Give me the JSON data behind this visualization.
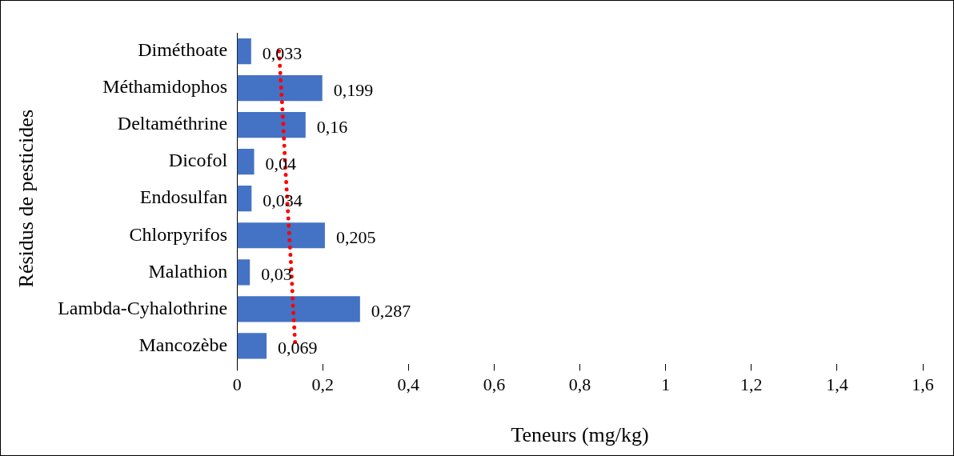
{
  "chart_data": {
    "type": "bar",
    "orientation": "horizontal",
    "xlabel": "Teneurs (mg/kg)",
    "ylabel": "Résidus de pesticides",
    "categories": [
      "Diméthoate",
      "Méthamidophos",
      "Deltaméthrine",
      "Dicofol",
      "Endosulfan",
      "Chlorpyrifos",
      "Malathion",
      "Lambda-Cyhalothrine",
      "Mancozèbe"
    ],
    "series": [
      {
        "color": "#4472c4",
        "values": [
          0.033,
          0.199,
          0.16,
          0.04,
          0.034,
          0.205,
          0.03,
          0.287,
          0.069
        ],
        "value_labels": [
          "0,033",
          "0,199",
          "0,16",
          "0,04",
          "0,034",
          "0,205",
          "0,03",
          "0,287",
          "0,069"
        ]
      },
      {
        "type": "line",
        "color": "#ff0000",
        "line_style": "dotted",
        "values": [
          0.098,
          0.103,
          0.108,
          0.112,
          0.117,
          0.122,
          0.127,
          0.131,
          0.136
        ]
      }
    ],
    "xlim": [
      0,
      1.6
    ],
    "xticks": [
      0,
      {
        "value": 0.2,
        "label": "0,2"
      },
      {
        "value": 0.4,
        "label": "0,4"
      },
      {
        "value": 0.6,
        "label": "0,6"
      },
      {
        "value": 0.8,
        "label": "0,8"
      },
      1,
      {
        "value": 1.2,
        "label": "1,2"
      },
      {
        "value": 1.4,
        "label": "1,4"
      },
      {
        "value": 1.6,
        "label": "1,6"
      }
    ],
    "grid": false,
    "legend": false
  }
}
